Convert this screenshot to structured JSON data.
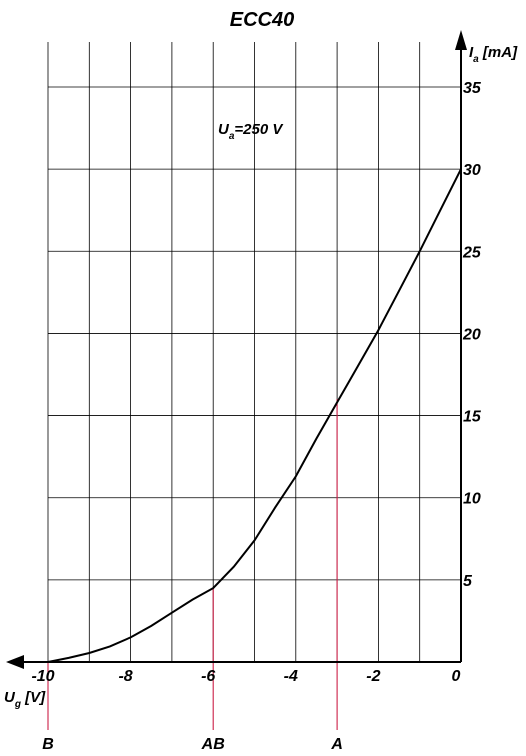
{
  "chart_data": {
    "type": "line",
    "title": "ECC40",
    "annotation": {
      "main": "U",
      "sub": "a",
      "rest": "=250 V"
    },
    "x_axis": {
      "label_main": "U",
      "label_sub": "g",
      "label_rest": " [V]",
      "range": [
        -10,
        0
      ],
      "ticks": [
        -10,
        -8,
        -6,
        -4,
        -2,
        0
      ],
      "tick_labels": [
        "-10",
        "-8",
        "-6",
        "-4",
        "-2",
        "0"
      ]
    },
    "y_axis": {
      "label_main": "I",
      "label_sub": "a",
      "label_rest": "  [mA]",
      "range": [
        0,
        35
      ],
      "ticks": [
        5,
        10,
        15,
        20,
        25,
        30,
        35
      ],
      "tick_labels": [
        "5",
        "10",
        "15",
        "20",
        "25",
        "30",
        "35"
      ]
    },
    "grid": true,
    "series": [
      {
        "x": [
          -10,
          -9.5,
          -9,
          -8.5,
          -8,
          -7.5,
          -7,
          -6.5,
          -6,
          -5.5,
          -5,
          -4.5,
          -4,
          -3.5,
          -3,
          -2.5,
          -2,
          -1.5,
          -1,
          -0.5,
          0
        ],
        "y": [
          0,
          0.25,
          0.55,
          0.95,
          1.5,
          2.2,
          3.0,
          3.8,
          4.5,
          5.8,
          7.4,
          9.4,
          11.3,
          13.6,
          15.8,
          18.0,
          20.2,
          22.6,
          25.0,
          27.5,
          30.0
        ]
      }
    ],
    "operating_points": [
      {
        "label": "B",
        "x": -10,
        "y": 0
      },
      {
        "label": "AB",
        "x": -6,
        "y": 4.5
      },
      {
        "label": "A",
        "x": -3,
        "y": 16
      }
    ],
    "marker_color": "#cc1e46"
  }
}
